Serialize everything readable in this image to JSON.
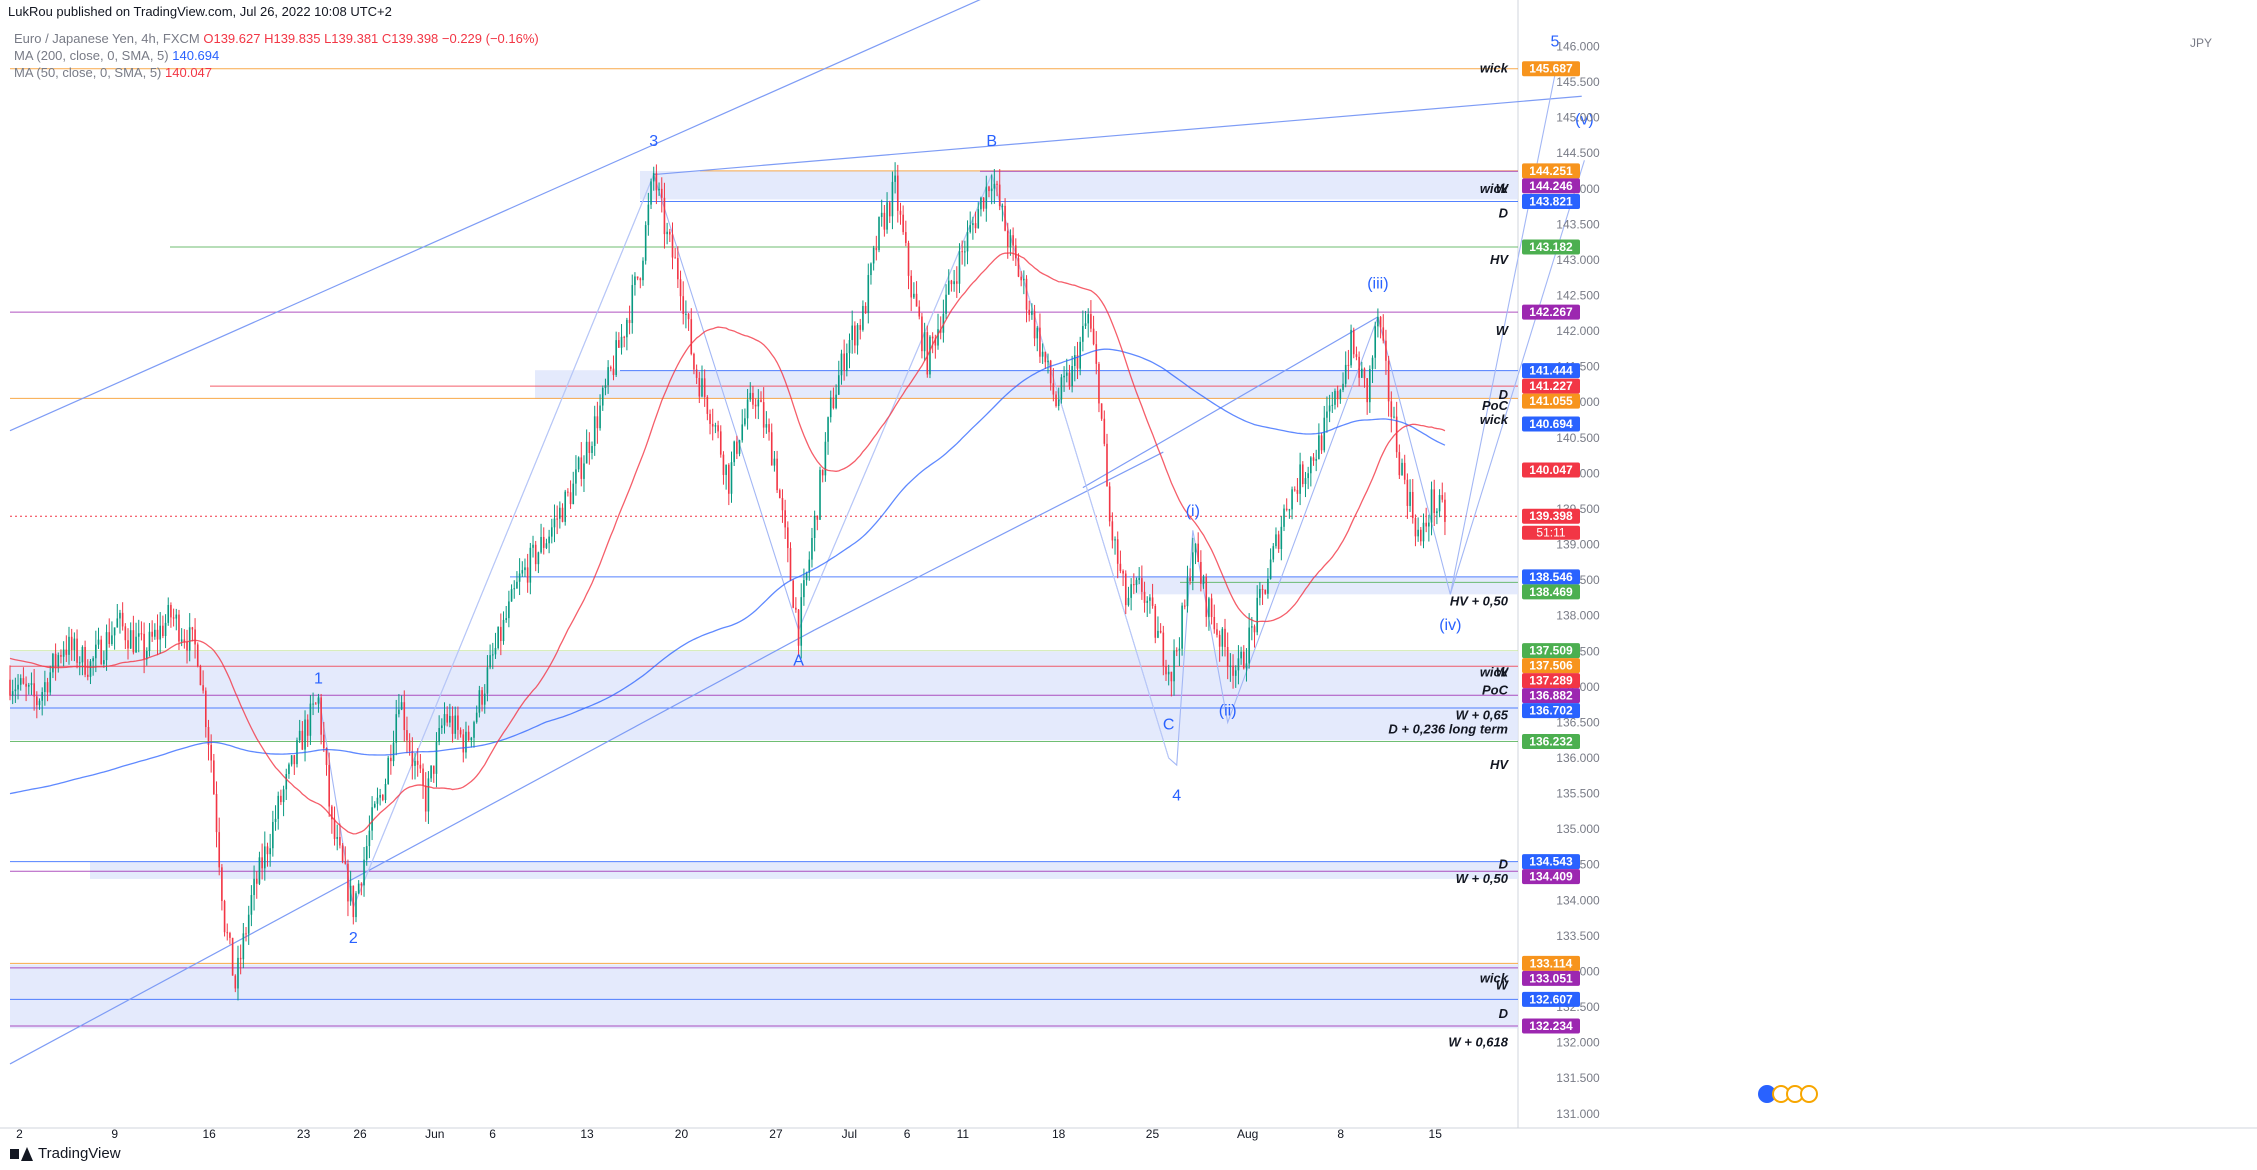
{
  "header": {
    "publisher": "LukRou published on TradingView.com, Jul 26, 2022 10:08 UTC+2"
  },
  "legend": {
    "symbol": "Euro / Japanese Yen, 4h, FXCM",
    "ohlc": "O139.627 H139.835 L139.381 C139.398 −0.229 (−0.16%)",
    "ma200_label": "MA (200, close, 0, SMA, 5)",
    "ma200_value": "140.694",
    "ma50_label": "MA (50, close, 0, SMA, 5)",
    "ma50_value": "140.047"
  },
  "axis": {
    "currency": "JPY",
    "countdown": "51:11"
  },
  "footer": {
    "brand": "TradingView"
  },
  "colors": {
    "up": "#089981",
    "down": "#f23645",
    "ma50": "#f23645",
    "ma200": "#2962ff",
    "zone": "#dfe6fb",
    "wave": "#2962ff"
  },
  "chart_data": {
    "type": "candlestick",
    "title": "Euro / Japanese Yen, 4h, FXCM",
    "ylim": [
      130.8,
      146.4
    ],
    "y_ticks": [
      131.0,
      131.5,
      132.0,
      132.5,
      133.0,
      133.5,
      134.0,
      134.5,
      135.0,
      135.5,
      136.0,
      136.5,
      137.0,
      137.5,
      138.0,
      138.5,
      139.0,
      139.5,
      140.0,
      140.5,
      141.0,
      141.5,
      142.0,
      142.5,
      143.0,
      143.5,
      144.0,
      144.5,
      145.0,
      145.5,
      146.0
    ],
    "x_ticks": [
      "2",
      "9",
      "16",
      "23",
      "26",
      "Jun",
      "6",
      "13",
      "20",
      "27",
      "Jul",
      "6",
      "11",
      "18",
      "25",
      "Aug",
      "8",
      "15"
    ],
    "price_path": [
      [
        0,
        137.1
      ],
      [
        10,
        136.8
      ],
      [
        20,
        137.6
      ],
      [
        30,
        137.3
      ],
      [
        40,
        137.9
      ],
      [
        50,
        137.5
      ],
      [
        60,
        138.0
      ],
      [
        70,
        137.5
      ],
      [
        75,
        136.0
      ],
      [
        80,
        133.7
      ],
      [
        84,
        132.8
      ],
      [
        90,
        134.0
      ],
      [
        100,
        135.3
      ],
      [
        110,
        136.4
      ],
      [
        115,
        136.8
      ],
      [
        120,
        135.0
      ],
      [
        128,
        133.9
      ],
      [
        135,
        135.1
      ],
      [
        140,
        135.7
      ],
      [
        145,
        136.9
      ],
      [
        150,
        136.0
      ],
      [
        155,
        135.4
      ],
      [
        162,
        136.6
      ],
      [
        170,
        136.2
      ],
      [
        180,
        137.4
      ],
      [
        190,
        138.5
      ],
      [
        200,
        139.1
      ],
      [
        210,
        139.8
      ],
      [
        220,
        140.9
      ],
      [
        228,
        141.9
      ],
      [
        235,
        142.9
      ],
      [
        240,
        144.2
      ],
      [
        245,
        143.3
      ],
      [
        250,
        142.7
      ],
      [
        255,
        141.5
      ],
      [
        262,
        140.8
      ],
      [
        268,
        139.9
      ],
      [
        272,
        140.6
      ],
      [
        278,
        141.1
      ],
      [
        285,
        140.2
      ],
      [
        290,
        138.8
      ],
      [
        294,
        137.8
      ],
      [
        300,
        139.3
      ],
      [
        306,
        140.9
      ],
      [
        312,
        141.8
      ],
      [
        318,
        142.2
      ],
      [
        324,
        143.4
      ],
      [
        330,
        144.0
      ],
      [
        336,
        142.6
      ],
      [
        342,
        141.6
      ],
      [
        348,
        142.3
      ],
      [
        354,
        143.0
      ],
      [
        360,
        143.6
      ],
      [
        366,
        144.2
      ],
      [
        372,
        143.3
      ],
      [
        378,
        142.6
      ],
      [
        384,
        141.8
      ],
      [
        390,
        141.0
      ],
      [
        396,
        141.4
      ],
      [
        402,
        142.2
      ],
      [
        406,
        141.2
      ],
      [
        410,
        139.3
      ],
      [
        416,
        138.2
      ],
      [
        422,
        138.4
      ],
      [
        428,
        137.7
      ],
      [
        433,
        137.2
      ],
      [
        438,
        138.1
      ],
      [
        441,
        139.0
      ],
      [
        446,
        138.2
      ],
      [
        452,
        137.6
      ],
      [
        458,
        137.2
      ],
      [
        464,
        137.9
      ],
      [
        470,
        138.7
      ],
      [
        476,
        139.6
      ],
      [
        482,
        140.0
      ],
      [
        488,
        140.4
      ],
      [
        494,
        141.0
      ],
      [
        500,
        141.8
      ],
      [
        506,
        141.1
      ],
      [
        510,
        142.2
      ],
      [
        514,
        141.1
      ],
      [
        518,
        140.2
      ],
      [
        522,
        139.6
      ],
      [
        526,
        139.0
      ],
      [
        530,
        139.6
      ],
      [
        535,
        139.4
      ]
    ],
    "series": [
      {
        "name": "MA (200, close, 0, SMA, 5)",
        "last": 140.694
      },
      {
        "name": "MA (50, close, 0, SMA, 5)",
        "last": 140.047
      }
    ],
    "price_labels": [
      {
        "value": "145.687",
        "color": "#f7941d"
      },
      {
        "value": "144.251",
        "color": "#f7941d"
      },
      {
        "value": "144.246",
        "color": "#9c27b0"
      },
      {
        "value": "143.821",
        "color": "#2962ff"
      },
      {
        "value": "143.182",
        "color": "#4caf50"
      },
      {
        "value": "142.267",
        "color": "#9c27b0"
      },
      {
        "value": "141.444",
        "color": "#2962ff"
      },
      {
        "value": "141.227",
        "color": "#f23645"
      },
      {
        "value": "141.055",
        "color": "#f7941d"
      },
      {
        "value": "140.694",
        "color": "#2962ff"
      },
      {
        "value": "140.047",
        "color": "#f23645"
      },
      {
        "value": "139.398",
        "color": "#f23645"
      },
      {
        "value": "138.546",
        "color": "#2962ff"
      },
      {
        "value": "138.469",
        "color": "#4caf50"
      },
      {
        "value": "137.509",
        "color": "#4caf50"
      },
      {
        "value": "137.506",
        "color": "#f7941d"
      },
      {
        "value": "137.289",
        "color": "#f23645"
      },
      {
        "value": "136.882",
        "color": "#9c27b0"
      },
      {
        "value": "136.702",
        "color": "#2962ff"
      },
      {
        "value": "136.232",
        "color": "#4caf50"
      },
      {
        "value": "134.543",
        "color": "#2962ff"
      },
      {
        "value": "134.409",
        "color": "#9c27b0"
      },
      {
        "value": "133.114",
        "color": "#f7941d"
      },
      {
        "value": "133.051",
        "color": "#9c27b0"
      },
      {
        "value": "132.607",
        "color": "#2962ff"
      },
      {
        "value": "132.234",
        "color": "#9c27b0"
      }
    ],
    "level_annotations": [
      {
        "text": "wick",
        "level": 145.687
      },
      {
        "text": "wick",
        "level": 144.0
      },
      {
        "text": "W",
        "level": 144.0
      },
      {
        "text": "D",
        "level": 143.65
      },
      {
        "text": "HV",
        "level": 143.0
      },
      {
        "text": "W",
        "level": 142.0
      },
      {
        "text": "D",
        "level": 141.1
      },
      {
        "text": "PoC",
        "level": 140.95
      },
      {
        "text": "wick",
        "level": 140.75
      },
      {
        "text": "HV + 0,50",
        "level": 138.2
      },
      {
        "text": "wick",
        "level": 137.2
      },
      {
        "text": "W",
        "level": 137.2
      },
      {
        "text": "PoC",
        "level": 136.95
      },
      {
        "text": "W + 0,65",
        "level": 136.6
      },
      {
        "text": "D + 0,236 long term",
        "level": 136.4
      },
      {
        "text": "HV",
        "level": 135.9
      },
      {
        "text": "D",
        "level": 134.5
      },
      {
        "text": "W + 0,50",
        "level": 134.3
      },
      {
        "text": "wick",
        "level": 132.9
      },
      {
        "text": "W",
        "level": 132.8
      },
      {
        "text": "D",
        "level": 132.4
      },
      {
        "text": "W + 0,618",
        "level": 132.0
      }
    ],
    "wave_labels": [
      {
        "text": "1",
        "x": 115,
        "y": 137.05
      },
      {
        "text": "2",
        "x": 128,
        "y": 133.4
      },
      {
        "text": "3",
        "x": 240,
        "y": 144.6
      },
      {
        "text": "A",
        "x": 294,
        "y": 137.3
      },
      {
        "text": "B",
        "x": 366,
        "y": 144.6
      },
      {
        "text": "C",
        "x": 432,
        "y": 136.4
      },
      {
        "text": "4",
        "x": 435,
        "y": 135.4
      },
      {
        "text": "(i)",
        "x": 441,
        "y": 139.4
      },
      {
        "text": "(ii)",
        "x": 454,
        "y": 136.6
      },
      {
        "text": "(iii)",
        "x": 510,
        "y": 142.6
      },
      {
        "text": "(iv)",
        "x": 537,
        "y": 137.8
      },
      {
        "text": "(v)",
        "x": 587,
        "y": 144.9
      },
      {
        "text": "5",
        "x": 576,
        "y": 146.0
      }
    ]
  }
}
